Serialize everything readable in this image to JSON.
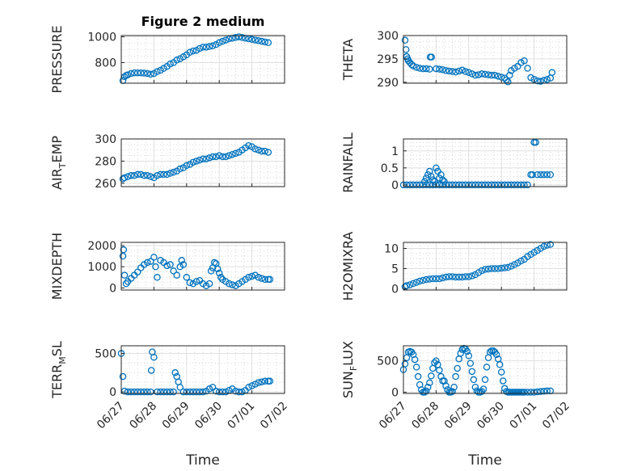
{
  "figure": {
    "title": "Figure 2 medium",
    "x_tick_labels": [
      "06/27",
      "06/28",
      "06/29",
      "06/30",
      "07/01",
      "07/02"
    ],
    "marker_color": "#0072BD"
  },
  "chart_data": [
    {
      "type": "scatter",
      "position": "row1-left",
      "title": "Figure 2 medium",
      "ylabel": "PRESSURE",
      "ylabel_main": "PRESSURE",
      "ylabel_sub": "",
      "ylabel_rest": "",
      "xlabel": "",
      "xlim": [
        "06/27",
        "07/02"
      ],
      "ylim": [
        640,
        1010
      ],
      "yticks": [
        800,
        1000
      ],
      "ytick_labels": [
        "800",
        "1000"
      ],
      "x": [
        0.05,
        0.1,
        0.15,
        0.2,
        0.3,
        0.4,
        0.5,
        0.6,
        0.7,
        0.8,
        0.9,
        1.0,
        1.1,
        1.2,
        1.3,
        1.4,
        1.5,
        1.6,
        1.7,
        1.8,
        1.9,
        2.0,
        2.1,
        2.2,
        2.3,
        2.4,
        2.5,
        2.6,
        2.7,
        2.8,
        2.9,
        3.0,
        3.1,
        3.2,
        3.3,
        3.4,
        3.5,
        3.6,
        3.7,
        3.8,
        3.9,
        4.0,
        4.1,
        4.2,
        4.3,
        4.4,
        4.5
      ],
      "y": [
        660,
        690,
        700,
        705,
        715,
        720,
        720,
        720,
        718,
        715,
        710,
        715,
        730,
        740,
        755,
        770,
        790,
        800,
        820,
        830,
        845,
        860,
        880,
        890,
        895,
        910,
        920,
        920,
        925,
        930,
        940,
        955,
        965,
        975,
        985,
        990,
        995,
        1000,
        995,
        990,
        985,
        980,
        975,
        970,
        965,
        960,
        955
      ]
    },
    {
      "type": "scatter",
      "position": "row1-right",
      "ylabel": "THETA",
      "ylabel_main": "THETA",
      "ylabel_sub": "",
      "ylabel_rest": "",
      "xlabel": "",
      "xlim": [
        "06/27",
        "07/02"
      ],
      "ylim": [
        289.8,
        300
      ],
      "yticks": [
        290,
        295,
        300
      ],
      "ytick_labels": [
        "290",
        "295",
        "300"
      ],
      "x": [
        0.05,
        0.08,
        0.1,
        0.13,
        0.15,
        0.2,
        0.25,
        0.3,
        0.4,
        0.5,
        0.6,
        0.7,
        0.8,
        0.82,
        0.86,
        1.0,
        1.1,
        1.2,
        1.3,
        1.4,
        1.5,
        1.6,
        1.7,
        1.8,
        1.9,
        2.0,
        2.1,
        2.2,
        2.3,
        2.4,
        2.5,
        2.6,
        2.7,
        2.8,
        2.9,
        3.0,
        3.1,
        3.15,
        3.2,
        3.25,
        3.3,
        3.4,
        3.5,
        3.6,
        3.7,
        3.8,
        3.9,
        4.0,
        4.1,
        4.2,
        4.3,
        4.4,
        4.5,
        4.55
      ],
      "y": [
        299,
        297,
        295.5,
        295,
        294.6,
        294.2,
        293.8,
        293.5,
        293.2,
        293,
        292.9,
        292.9,
        292.8,
        295.4,
        295.4,
        292.9,
        292.8,
        292.7,
        292.5,
        292.4,
        292.3,
        292.2,
        292.4,
        292.6,
        292.3,
        292.1,
        291.8,
        291.5,
        291.6,
        291.8,
        291.7,
        291.6,
        291.5,
        291.5,
        291.3,
        291.1,
        290.9,
        290.5,
        290.1,
        291.5,
        292.5,
        293,
        293.4,
        294.2,
        294.6,
        293,
        291,
        290.6,
        290.3,
        290.2,
        290.4,
        290.6,
        290.9,
        292.1
      ]
    },
    {
      "type": "scatter",
      "position": "row2-left",
      "ylabel": "AIR_TEMP",
      "ylabel_main": "AIR",
      "ylabel_sub": "T",
      "ylabel_rest": "EMP",
      "xlabel": "",
      "xlim": [
        "06/27",
        "07/02"
      ],
      "ylim": [
        257,
        300
      ],
      "yticks": [
        260,
        280,
        300
      ],
      "ytick_labels": [
        "260",
        "280",
        "300"
      ],
      "x": [
        0.05,
        0.1,
        0.2,
        0.3,
        0.4,
        0.5,
        0.6,
        0.7,
        0.8,
        0.9,
        1.0,
        1.1,
        1.2,
        1.3,
        1.4,
        1.5,
        1.6,
        1.7,
        1.8,
        1.9,
        2.0,
        2.1,
        2.2,
        2.3,
        2.4,
        2.5,
        2.6,
        2.7,
        2.8,
        2.9,
        3.0,
        3.1,
        3.2,
        3.3,
        3.4,
        3.5,
        3.6,
        3.7,
        3.8,
        3.9,
        4.0,
        4.1,
        4.2,
        4.3,
        4.4,
        4.5
      ],
      "y": [
        264,
        265,
        266,
        267,
        267,
        268,
        268,
        267,
        267,
        266,
        265,
        267,
        268,
        268,
        268,
        269,
        270,
        271,
        273,
        274,
        276,
        277,
        279,
        280,
        281,
        282,
        282,
        283,
        284,
        284,
        285,
        284,
        284,
        285,
        286,
        287,
        288,
        290,
        292,
        294,
        293,
        291,
        290,
        289,
        289,
        288
      ]
    },
    {
      "type": "scatter",
      "position": "row2-right",
      "ylabel": "RAINFALL",
      "ylabel_main": "RAINFALL",
      "ylabel_sub": "",
      "ylabel_rest": "",
      "xlabel": "",
      "xlim": [
        "06/27",
        "07/02"
      ],
      "ylim": [
        -0.05,
        1.35
      ],
      "yticks": [
        0,
        0.5,
        1
      ],
      "ytick_labels": [
        "0",
        "0.5",
        "1"
      ],
      "x": [
        0.0,
        0.1,
        0.2,
        0.3,
        0.4,
        0.5,
        0.6,
        0.7,
        0.8,
        0.9,
        1.0,
        1.1,
        1.2,
        1.3,
        1.4,
        1.5,
        1.6,
        1.7,
        1.8,
        1.9,
        2.0,
        2.1,
        2.2,
        2.3,
        2.4,
        2.5,
        2.6,
        2.7,
        2.8,
        2.9,
        3.0,
        3.1,
        3.2,
        3.3,
        3.4,
        3.5,
        3.6,
        3.7,
        3.8,
        0.65,
        0.7,
        0.75,
        0.8,
        0.85,
        0.9,
        0.95,
        1.0,
        1.05,
        1.1,
        1.15,
        1.2,
        1.25,
        3.9,
        3.95,
        4.0,
        4.05,
        4.1,
        4.2,
        4.3,
        4.4,
        4.5
      ],
      "y": [
        0,
        0,
        0,
        0,
        0,
        0,
        0,
        0,
        0,
        0,
        0,
        0,
        0,
        0,
        0,
        0,
        0,
        0,
        0,
        0,
        0,
        0,
        0,
        0,
        0,
        0,
        0,
        0,
        0,
        0,
        0,
        0,
        0,
        0,
        0,
        0,
        0,
        0,
        0,
        0.1,
        0.2,
        0.3,
        0.4,
        0.25,
        0.15,
        0.1,
        0.5,
        0.4,
        0.2,
        0.3,
        0.15,
        0.1,
        0.3,
        0.3,
        1.25,
        1.25,
        0.3,
        0.3,
        0.3,
        0.3,
        0.3
      ]
    },
    {
      "type": "scatter",
      "position": "row3-left",
      "ylabel": "MIXDEPTH",
      "ylabel_main": "MIXDEPTH",
      "ylabel_sub": "",
      "ylabel_rest": "",
      "xlabel": "",
      "xlim": [
        "06/27",
        "07/02"
      ],
      "ylim": [
        -100,
        2150
      ],
      "yticks": [
        0,
        1000,
        2000
      ],
      "ytick_labels": [
        "0",
        "1000",
        "2000"
      ],
      "x": [
        0.05,
        0.07,
        0.1,
        0.15,
        0.2,
        0.3,
        0.4,
        0.5,
        0.6,
        0.7,
        0.8,
        0.9,
        1.0,
        1.05,
        1.1,
        1.2,
        1.3,
        1.4,
        1.5,
        1.6,
        1.7,
        1.8,
        1.85,
        1.9,
        2.0,
        2.1,
        2.2,
        2.3,
        2.4,
        2.5,
        2.6,
        2.7,
        2.75,
        2.8,
        2.85,
        2.9,
        2.95,
        3.0,
        3.05,
        3.1,
        3.2,
        3.3,
        3.4,
        3.5,
        3.6,
        3.7,
        3.8,
        3.9,
        4.0,
        4.1,
        4.2,
        4.3,
        4.4,
        4.5,
        4.55
      ],
      "y": [
        1500,
        1800,
        600,
        200,
        300,
        450,
        600,
        750,
        950,
        1100,
        1200,
        1250,
        1450,
        1000,
        500,
        1300,
        1200,
        1050,
        1100,
        800,
        600,
        1000,
        1300,
        1100,
        500,
        250,
        200,
        300,
        350,
        200,
        100,
        200,
        800,
        950,
        1200,
        1150,
        900,
        700,
        500,
        400,
        300,
        200,
        150,
        100,
        200,
        300,
        400,
        500,
        550,
        600,
        500,
        450,
        400,
        400,
        400
      ]
    },
    {
      "type": "scatter",
      "position": "row3-right",
      "ylabel": "H2OMIXRA",
      "ylabel_main": "H2OMIXRA",
      "ylabel_sub": "",
      "ylabel_rest": "",
      "xlabel": "",
      "xlim": [
        "06/27",
        "07/02"
      ],
      "ylim": [
        -0.3,
        11.5
      ],
      "yticks": [
        0,
        5,
        10
      ],
      "ytick_labels": [
        "0",
        "5",
        "10"
      ],
      "x": [
        0.05,
        0.1,
        0.2,
        0.3,
        0.4,
        0.5,
        0.6,
        0.7,
        0.8,
        0.9,
        1.0,
        1.1,
        1.2,
        1.3,
        1.4,
        1.5,
        1.6,
        1.7,
        1.8,
        1.9,
        2.0,
        2.1,
        2.2,
        2.3,
        2.4,
        2.5,
        2.6,
        2.7,
        2.8,
        2.9,
        3.0,
        3.1,
        3.2,
        3.3,
        3.4,
        3.5,
        3.6,
        3.7,
        3.8,
        3.9,
        4.0,
        4.1,
        4.2,
        4.3,
        4.4,
        4.5
      ],
      "y": [
        0.5,
        0.8,
        1.0,
        1.3,
        1.6,
        1.9,
        2.1,
        2.3,
        2.4,
        2.5,
        2.5,
        2.5,
        2.7,
        2.9,
        3.0,
        3.0,
        2.9,
        2.9,
        2.9,
        3.0,
        3.0,
        3.2,
        3.5,
        4.0,
        4.5,
        4.8,
        4.9,
        5.0,
        5.0,
        5.0,
        5.1,
        5.2,
        5.3,
        5.6,
        6.0,
        6.4,
        6.9,
        7.3,
        8.0,
        8.5,
        9.0,
        9.5,
        10.0,
        10.5,
        10.8,
        11.0
      ]
    },
    {
      "type": "scatter",
      "position": "row4-left",
      "ylabel": "TERR_MSL",
      "ylabel_main": "TERR",
      "ylabel_sub": "M",
      "ylabel_rest": "SL",
      "xlabel": "Time",
      "xlim": [
        "06/27",
        "07/02"
      ],
      "ylim": [
        -20,
        600
      ],
      "yticks": [
        0,
        500
      ],
      "ytick_labels": [
        "0",
        "500"
      ],
      "x": [
        0.0,
        0.05,
        0.1,
        0.2,
        0.3,
        0.4,
        0.5,
        0.6,
        0.7,
        0.8,
        0.9,
        0.92,
        0.95,
        1.0,
        1.1,
        1.2,
        1.3,
        1.4,
        1.5,
        1.6,
        1.65,
        1.7,
        1.75,
        1.8,
        1.9,
        2.0,
        2.1,
        2.2,
        2.3,
        2.4,
        2.5,
        2.6,
        2.7,
        2.8,
        2.9,
        3.0,
        3.1,
        3.2,
        3.3,
        3.4,
        3.5,
        3.6,
        3.7,
        3.8,
        3.9,
        4.0,
        4.1,
        4.2,
        4.3,
        4.4,
        4.5,
        4.55
      ],
      "y": [
        500,
        200,
        10,
        0,
        0,
        0,
        0,
        0,
        0,
        0,
        0,
        280,
        520,
        450,
        0,
        0,
        0,
        0,
        0,
        0,
        250,
        200,
        130,
        60,
        0,
        0,
        0,
        0,
        0,
        0,
        0,
        10,
        40,
        60,
        10,
        0,
        0,
        0,
        20,
        40,
        10,
        0,
        0,
        20,
        60,
        80,
        100,
        120,
        130,
        140,
        140,
        140
      ]
    },
    {
      "type": "scatter",
      "position": "row4-right",
      "ylabel": "SUN_FLUX",
      "ylabel_main": "SUN",
      "ylabel_sub": "F",
      "ylabel_rest": "LUX",
      "xlabel": "Time",
      "xlim": [
        "06/27",
        "07/02"
      ],
      "ylim": [
        -20,
        740
      ],
      "yticks": [
        0,
        500
      ],
      "ytick_labels": [
        "0",
        "500"
      ],
      "x": [
        0.0,
        0.05,
        0.1,
        0.15,
        0.2,
        0.25,
        0.3,
        0.35,
        0.4,
        0.45,
        0.5,
        0.55,
        0.6,
        0.65,
        0.7,
        0.75,
        0.8,
        0.85,
        0.9,
        0.95,
        1.0,
        1.05,
        1.1,
        1.15,
        1.2,
        1.25,
        1.3,
        1.35,
        1.4,
        1.45,
        1.5,
        1.55,
        1.6,
        1.65,
        1.7,
        1.75,
        1.8,
        1.85,
        1.9,
        1.95,
        2.0,
        2.05,
        2.1,
        2.15,
        2.2,
        2.25,
        2.3,
        2.35,
        2.4,
        2.45,
        2.5,
        2.55,
        2.6,
        2.65,
        2.7,
        2.75,
        2.8,
        2.85,
        2.9,
        2.95,
        3.0,
        3.05,
        3.1,
        3.15,
        3.2,
        3.25,
        3.3,
        3.35,
        3.4,
        3.45,
        3.5,
        3.55,
        3.6,
        3.65,
        3.7,
        3.8,
        3.9,
        4.0,
        4.1,
        4.2,
        4.3,
        4.4,
        4.5
      ],
      "y": [
        360,
        450,
        550,
        640,
        650,
        640,
        600,
        520,
        400,
        250,
        120,
        40,
        0,
        0,
        20,
        80,
        150,
        260,
        380,
        470,
        500,
        440,
        350,
        250,
        180,
        180,
        100,
        40,
        0,
        0,
        10,
        80,
        250,
        380,
        530,
        620,
        680,
        700,
        690,
        650,
        580,
        460,
        330,
        200,
        80,
        20,
        0,
        0,
        10,
        50,
        200,
        400,
        550,
        640,
        660,
        660,
        640,
        600,
        530,
        440,
        320,
        180,
        60,
        10,
        0,
        0,
        0,
        0,
        0,
        0,
        0,
        0,
        0,
        0,
        0,
        0,
        0,
        0,
        5,
        10,
        15,
        20,
        20
      ]
    }
  ]
}
